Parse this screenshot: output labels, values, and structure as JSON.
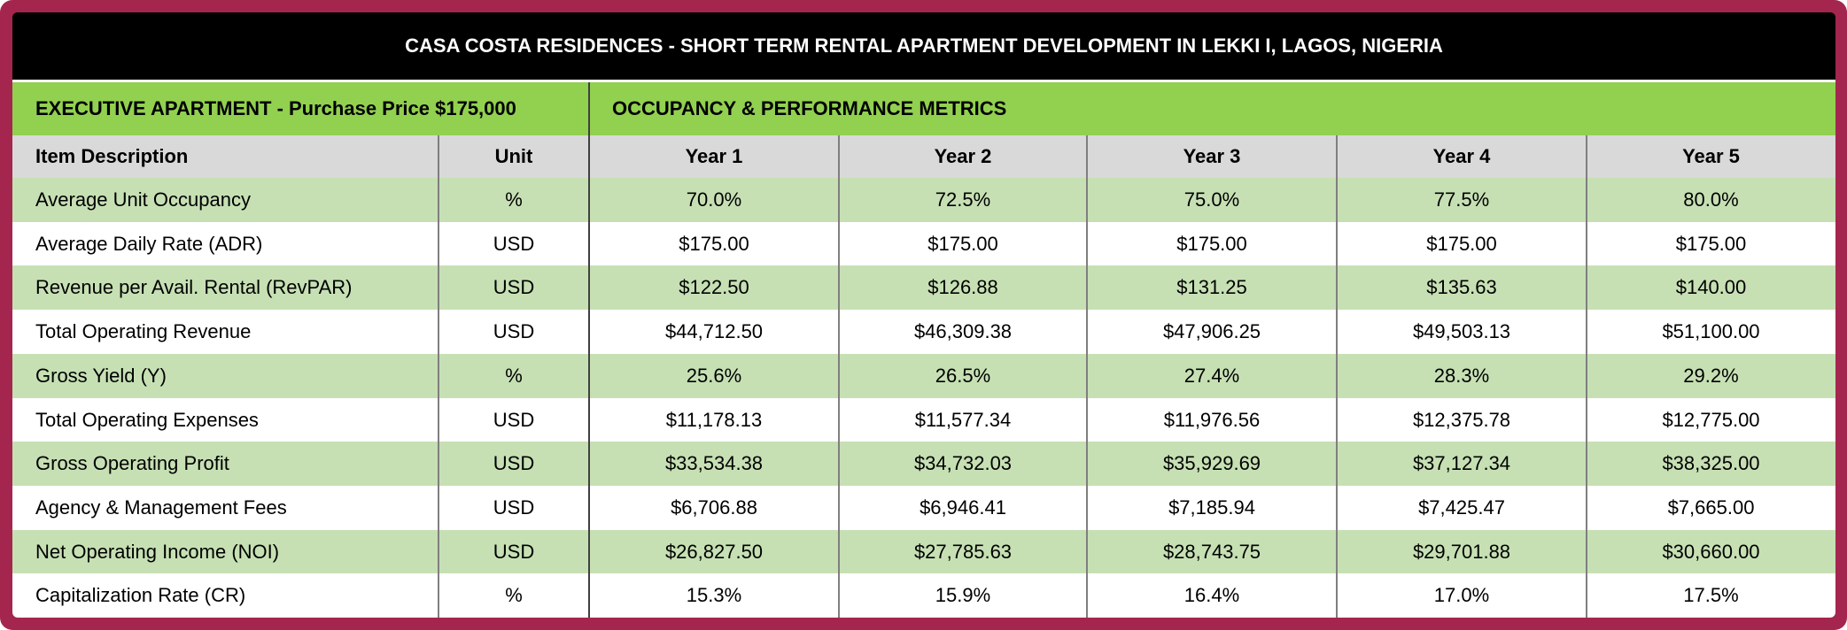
{
  "title": "CASA COSTA RESIDENCES - SHORT TERM RENTAL APARTMENT DEVELOPMENT IN LEKKI I, LAGOS, NIGERIA",
  "section": {
    "left": "EXECUTIVE APARTMENT - Purchase Price $175,000",
    "right": "OCCUPANCY & PERFORMANCE METRICS"
  },
  "table": {
    "header": [
      "Item Description",
      "Unit",
      "Year 1",
      "Year 2",
      "Year 3",
      "Year 4",
      "Year 5"
    ],
    "rows": [
      [
        "Average Unit Occupancy",
        "%",
        "70.0%",
        "72.5%",
        "75.0%",
        "77.5%",
        "80.0%"
      ],
      [
        "Average Daily Rate (ADR)",
        "USD",
        "$175.00",
        "$175.00",
        "$175.00",
        "$175.00",
        "$175.00"
      ],
      [
        "Revenue per Avail. Rental (RevPAR)",
        "USD",
        "$122.50",
        "$126.88",
        "$131.25",
        "$135.63",
        "$140.00"
      ],
      [
        "Total Operating Revenue",
        "USD",
        "$44,712.50",
        "$46,309.38",
        "$47,906.25",
        "$49,503.13",
        "$51,100.00"
      ],
      [
        "Gross Yield (Y)",
        "%",
        "25.6%",
        "26.5%",
        "27.4%",
        "28.3%",
        "29.2%"
      ],
      [
        "Total Operating Expenses",
        "USD",
        "$11,178.13",
        "$11,577.34",
        "$11,976.56",
        "$12,375.78",
        "$12,775.00"
      ],
      [
        "Gross Operating Profit",
        "USD",
        "$33,534.38",
        "$34,732.03",
        "$35,929.69",
        "$37,127.34",
        "$38,325.00"
      ],
      [
        "Agency & Management Fees",
        "USD",
        "$6,706.88",
        "$6,946.41",
        "$7,185.94",
        "$7,425.47",
        "$7,665.00"
      ],
      [
        "Net Operating Income (NOI)",
        "USD",
        "$26,827.50",
        "$27,785.63",
        "$28,743.75",
        "$29,701.88",
        "$30,660.00"
      ],
      [
        "Capitalization Rate (CR)",
        "%",
        "15.3%",
        "15.9%",
        "16.4%",
        "17.0%",
        "17.5%"
      ]
    ]
  }
}
